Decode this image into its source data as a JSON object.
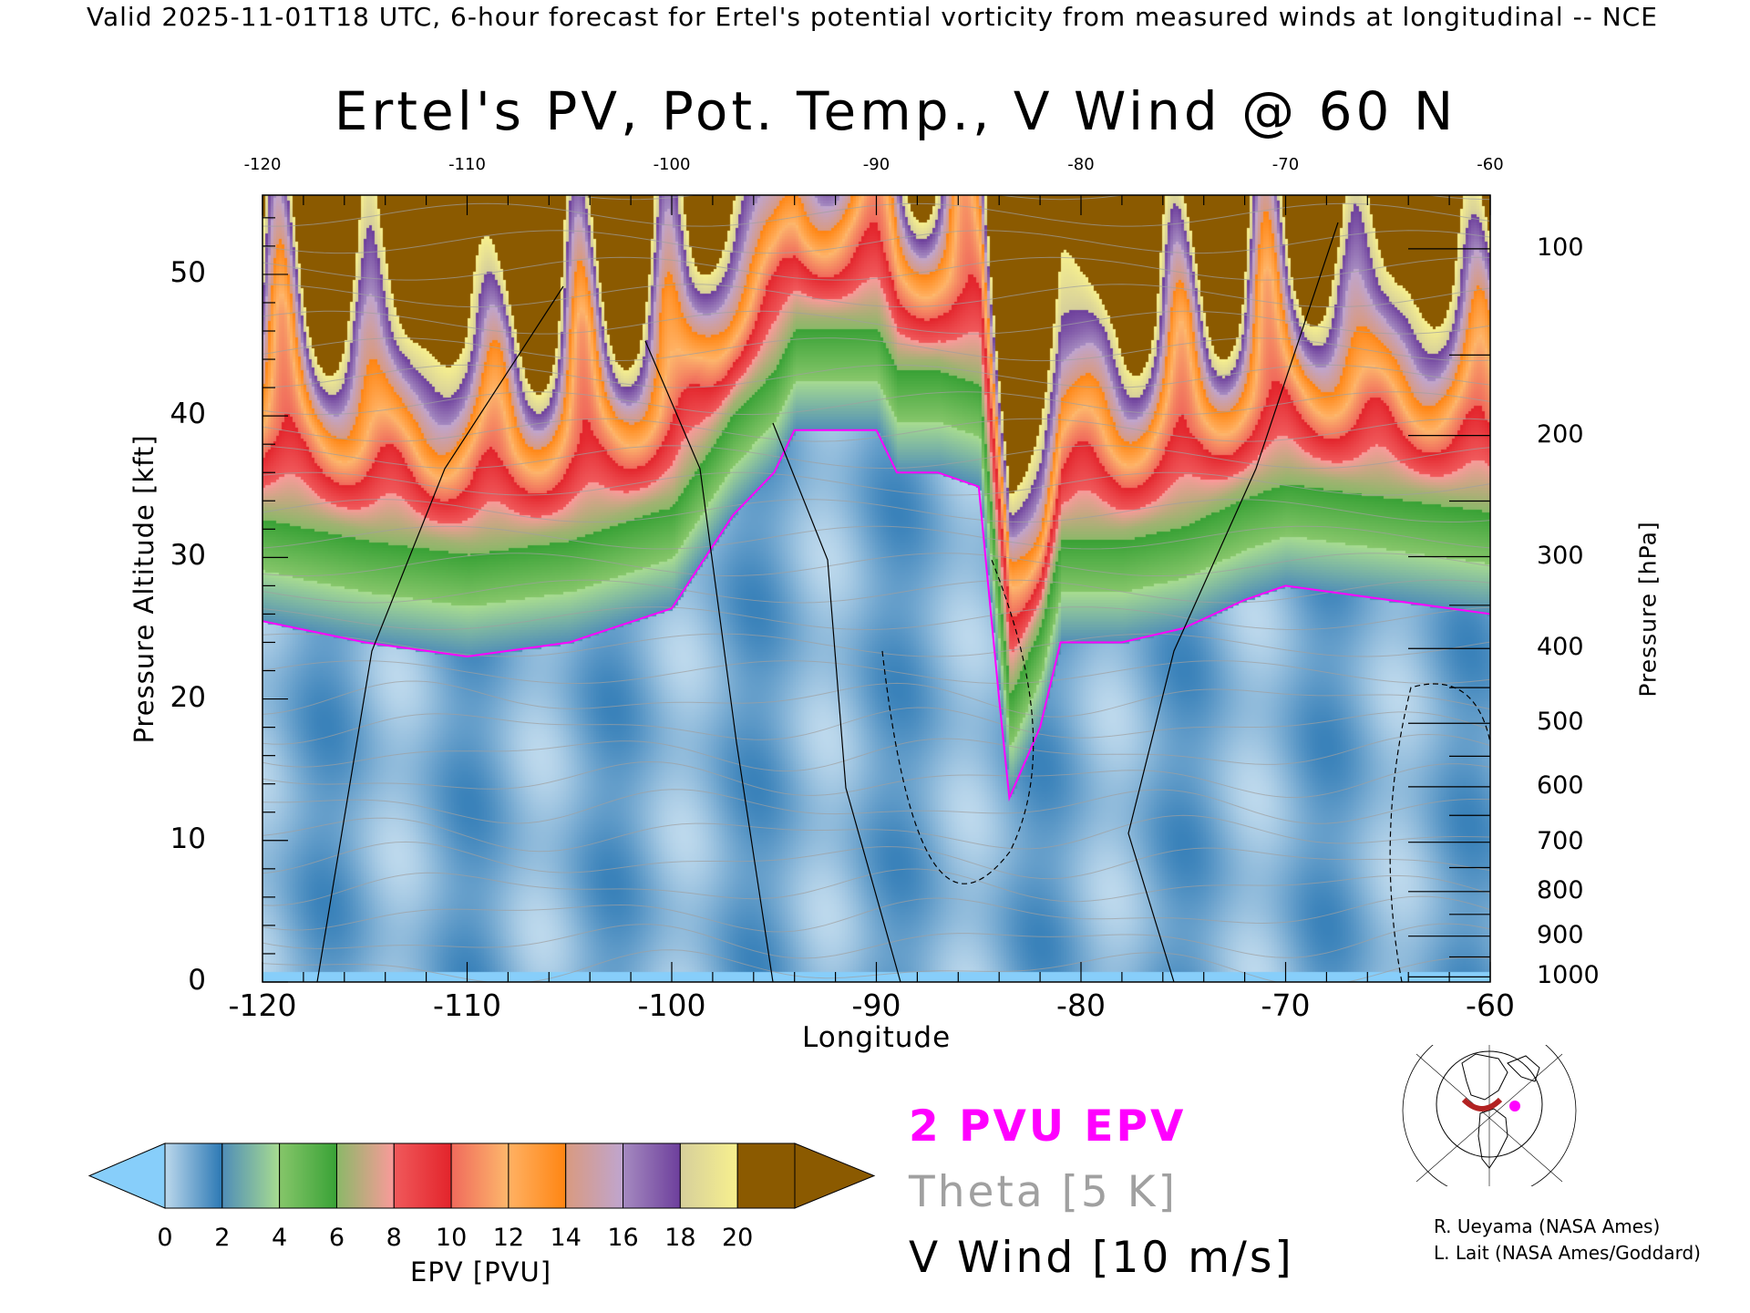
{
  "header": "Valid 2025-11-01T18 UTC, 6-hour forecast for Ertel's potential vorticity from measured winds at longitudinal -- NCE",
  "chart_data": {
    "type": "heatmap",
    "title": "Ertel's PV, Pot. Temp., V Wind @ 60 N",
    "xlabel": "Longitude",
    "ylabel": "Pressure Altitude [kft]",
    "ylabel_right": "Pressure [hPa]",
    "xlim": [
      -120,
      -60
    ],
    "ylim": [
      0,
      55.6
    ],
    "x_ticks": [
      "-120",
      "-110",
      "-100",
      "-90",
      "-80",
      "-70",
      "-60"
    ],
    "x_tick_values": [
      -120,
      -110,
      -100,
      -90,
      -80,
      -70,
      -60
    ],
    "top_ticks": [
      "-120",
      "-110",
      "-100",
      "-90",
      "-80",
      "-70",
      "-60"
    ],
    "y_ticks": [
      "0",
      "10",
      "20",
      "30",
      "40",
      "50"
    ],
    "y_tick_values": [
      0,
      10,
      20,
      30,
      40,
      50
    ],
    "pressure_ticks": [
      "100",
      "200",
      "300",
      "400",
      "500",
      "600",
      "700",
      "800",
      "900",
      "1000"
    ],
    "pressure_tick_values": [
      100,
      200,
      300,
      400,
      500,
      600,
      700,
      800,
      900,
      1000
    ],
    "tropopause_2pvu": {
      "lon": [
        -120,
        -115,
        -110,
        -105,
        -100,
        -97,
        -95,
        -94,
        -93,
        -90,
        -89,
        -87,
        -85,
        -84,
        -83.5,
        -82,
        -81,
        -78,
        -75,
        -72,
        -70,
        -65,
        -60
      ],
      "kft": [
        25.5,
        24,
        23,
        24,
        26.4,
        33,
        36,
        39,
        39,
        39,
        36,
        36,
        35,
        20,
        13,
        18,
        24,
        24,
        25,
        27,
        28,
        27,
        26
      ]
    },
    "colorbar": {
      "label": "EPV [PVU]",
      "ticks": [
        "0",
        "2",
        "4",
        "6",
        "8",
        "10",
        "12",
        "14",
        "16",
        "18",
        "20"
      ],
      "under_color": "#87cefa",
      "over_color": "#8b5a00",
      "bins": [
        [
          "#bcd8ec",
          "#2b78b4"
        ],
        [
          "#4f8db8",
          "#a8dc90"
        ],
        [
          "#86c66a",
          "#39a236"
        ],
        [
          "#8bb868",
          "#fa9a9a"
        ],
        [
          "#f0595b",
          "#e3242b"
        ],
        [
          "#f06a5c",
          "#fdb86c"
        ],
        [
          "#ffb163",
          "#ff8512"
        ],
        [
          "#d99a80",
          "#bfa5cf"
        ],
        [
          "#a58ac0",
          "#6d3f9c"
        ],
        [
          "#d6cf9b",
          "#f7f08e"
        ],
        [
          "#e6b66c",
          "#b98240"
        ]
      ]
    },
    "legend": {
      "pvu": "2 PVU EPV",
      "theta": "Theta [5 K]",
      "wind": "V Wind [10 m/s]",
      "pvu_color": "#ff00ff",
      "theta_color": "#a0a0a0"
    }
  },
  "credits": [
    "R. Ueyama (NASA Ames)",
    "L. Lait (NASA Ames/Goddard)"
  ]
}
